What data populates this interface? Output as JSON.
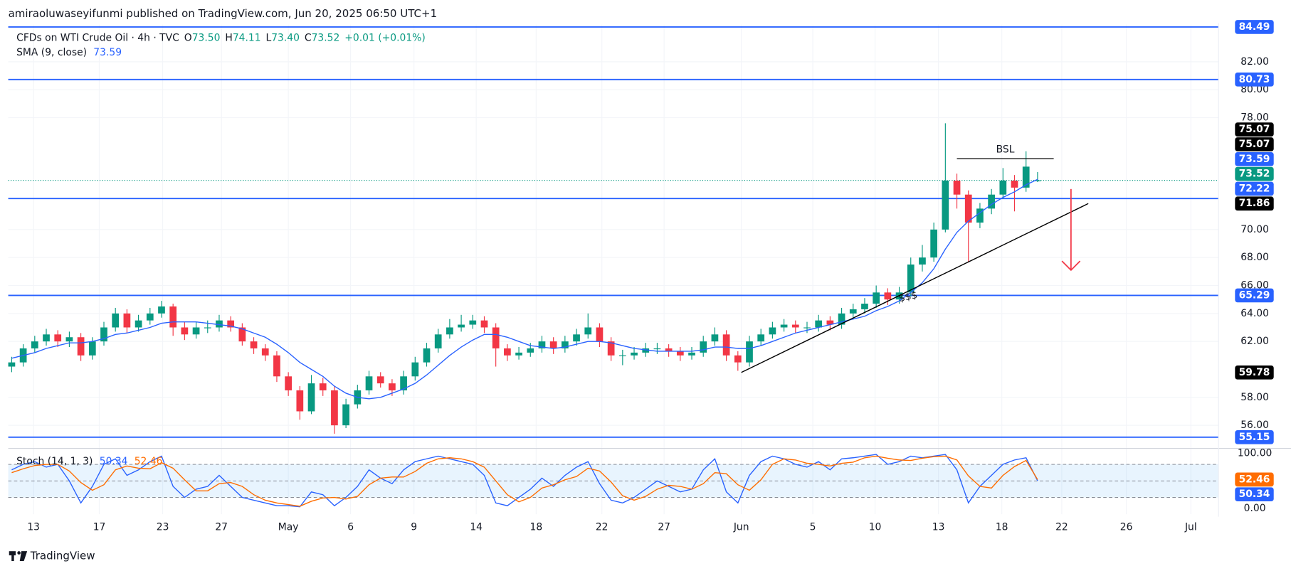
{
  "header": {
    "published": "amiraoluwaseyifunmi published on TradingView.com, Jun 20, 2025 06:50 UTC+1"
  },
  "legend": {
    "symbol": "CFDs on WTI Crude Oil · 4h · TVC",
    "o_label": "O",
    "open": "73.50",
    "h_label": "H",
    "high": "74.11",
    "l_label": "L",
    "low": "73.40",
    "c_label": "C",
    "close": "73.52",
    "change": "+0.01 (+0.01%)",
    "sma_label": "SMA (9, close)",
    "sma": "73.59",
    "stoch_label": "Stoch (14, 1, 3)",
    "stoch_k": "50.34",
    "stoch_d": "52.46"
  },
  "footer": {
    "brand": "TradingView"
  },
  "chart_data": {
    "type": "candlestick",
    "up_color": "#089981",
    "down_color": "#f23645",
    "grid": true,
    "xlim": [
      -0.3,
      104.7
    ],
    "ylim": [
      54.35,
      84.65
    ],
    "xticks": [
      {
        "value": 1.9,
        "label": "13"
      },
      {
        "value": 7.6,
        "label": "17"
      },
      {
        "value": 13.1,
        "label": "23"
      },
      {
        "value": 18.2,
        "label": "27"
      },
      {
        "value": 24,
        "label": "May"
      },
      {
        "value": 29.4,
        "label": "6"
      },
      {
        "value": 34.9,
        "label": "9"
      },
      {
        "value": 40.3,
        "label": "14"
      },
      {
        "value": 45.5,
        "label": "18"
      },
      {
        "value": 51.2,
        "label": "22"
      },
      {
        "value": 56.6,
        "label": "27"
      },
      {
        "value": 63.3,
        "label": "Jun"
      },
      {
        "value": 69.5,
        "label": "5"
      },
      {
        "value": 74.9,
        "label": "10"
      },
      {
        "value": 80.4,
        "label": "13"
      },
      {
        "value": 85.9,
        "label": "18"
      },
      {
        "value": 91.1,
        "label": "22"
      },
      {
        "value": 96.7,
        "label": "26"
      },
      {
        "value": 102.3,
        "label": "Jul"
      }
    ],
    "yticks": [
      {
        "value": 56,
        "label": "56.00"
      },
      {
        "value": 58,
        "label": "58.00"
      },
      {
        "value": 62,
        "label": "62.00"
      },
      {
        "value": 64,
        "label": "64.00"
      },
      {
        "value": 66,
        "label": "66.00"
      },
      {
        "value": 68,
        "label": "68.00"
      },
      {
        "value": 70,
        "label": "70.00"
      },
      {
        "value": 78,
        "label": "78.00"
      },
      {
        "value": 80,
        "label": "80.00"
      },
      {
        "value": 82,
        "label": "82.00"
      }
    ],
    "candles": [
      [
        60.2,
        60.9,
        59.8,
        60.5
      ],
      [
        60.5,
        61.8,
        60.2,
        61.5
      ],
      [
        61.5,
        62.4,
        61.2,
        62.0
      ],
      [
        62.0,
        62.9,
        61.7,
        62.5
      ],
      [
        62.5,
        62.8,
        61.6,
        62.0
      ],
      [
        62.0,
        62.7,
        61.6,
        62.3
      ],
      [
        62.3,
        62.6,
        60.6,
        61.0
      ],
      [
        61.0,
        62.3,
        60.7,
        62.0
      ],
      [
        62.0,
        63.4,
        61.7,
        63.0
      ],
      [
        63.0,
        64.4,
        62.7,
        64.0
      ],
      [
        64.0,
        64.3,
        62.6,
        63.0
      ],
      [
        63.0,
        63.9,
        62.7,
        63.5
      ],
      [
        63.5,
        64.4,
        63.2,
        64.0
      ],
      [
        64.0,
        64.9,
        63.7,
        64.5
      ],
      [
        64.5,
        64.7,
        62.4,
        63.0
      ],
      [
        63.0,
        63.4,
        62.1,
        62.5
      ],
      [
        62.5,
        63.4,
        62.2,
        63.0
      ],
      [
        63.0,
        63.5,
        62.6,
        63.0
      ],
      [
        63.0,
        63.9,
        62.7,
        63.5
      ],
      [
        63.5,
        63.8,
        62.7,
        63.0
      ],
      [
        63.0,
        63.3,
        61.7,
        62.0
      ],
      [
        62.0,
        62.3,
        61.1,
        61.5
      ],
      [
        61.5,
        61.8,
        60.6,
        61.0
      ],
      [
        61.0,
        61.3,
        59.1,
        59.5
      ],
      [
        59.5,
        59.8,
        58.1,
        58.5
      ],
      [
        58.5,
        58.8,
        56.4,
        57.0
      ],
      [
        57.0,
        59.6,
        56.8,
        59.0
      ],
      [
        59.0,
        59.4,
        58.1,
        58.5
      ],
      [
        58.5,
        58.8,
        55.4,
        56.0
      ],
      [
        56.0,
        57.9,
        55.8,
        57.5
      ],
      [
        57.5,
        58.9,
        57.2,
        58.5
      ],
      [
        58.5,
        59.9,
        58.2,
        59.5
      ],
      [
        59.5,
        59.8,
        58.7,
        59.0
      ],
      [
        59.0,
        59.3,
        58.1,
        58.5
      ],
      [
        58.5,
        59.9,
        58.2,
        59.5
      ],
      [
        59.5,
        60.9,
        59.2,
        60.5
      ],
      [
        60.5,
        61.9,
        60.2,
        61.5
      ],
      [
        61.5,
        62.9,
        61.2,
        62.5
      ],
      [
        62.5,
        63.6,
        62.2,
        63.0
      ],
      [
        63.0,
        63.9,
        62.7,
        63.2
      ],
      [
        63.2,
        63.9,
        62.9,
        63.5
      ],
      [
        63.5,
        63.8,
        62.6,
        63.0
      ],
      [
        63.0,
        63.3,
        60.2,
        61.5
      ],
      [
        61.5,
        61.8,
        60.6,
        61.0
      ],
      [
        61.0,
        61.6,
        60.7,
        61.2
      ],
      [
        61.2,
        61.9,
        60.9,
        61.5
      ],
      [
        61.5,
        62.4,
        61.2,
        62.0
      ],
      [
        62.0,
        62.3,
        61.1,
        61.5
      ],
      [
        61.5,
        62.4,
        61.2,
        62.0
      ],
      [
        62.0,
        62.9,
        61.7,
        62.5
      ],
      [
        62.5,
        64.0,
        62.2,
        63.0
      ],
      [
        63.0,
        63.3,
        61.6,
        62.0
      ],
      [
        62.0,
        62.3,
        60.6,
        61.0
      ],
      [
        61.0,
        61.4,
        60.3,
        61.0
      ],
      [
        61.0,
        61.6,
        60.7,
        61.2
      ],
      [
        61.2,
        61.9,
        60.9,
        61.5
      ],
      [
        61.5,
        61.9,
        61.1,
        61.5
      ],
      [
        61.5,
        61.8,
        60.9,
        61.3
      ],
      [
        61.3,
        61.6,
        60.6,
        61.0
      ],
      [
        61.0,
        61.6,
        60.7,
        61.2
      ],
      [
        61.2,
        62.4,
        60.9,
        62.0
      ],
      [
        62.0,
        63.0,
        61.7,
        62.5
      ],
      [
        62.5,
        62.8,
        60.6,
        61.0
      ],
      [
        61.0,
        61.3,
        59.9,
        60.5
      ],
      [
        60.5,
        62.4,
        60.2,
        62.0
      ],
      [
        62.0,
        62.9,
        61.7,
        62.5
      ],
      [
        62.5,
        63.4,
        62.2,
        63.0
      ],
      [
        63.0,
        63.6,
        62.7,
        63.2
      ],
      [
        63.2,
        63.5,
        62.6,
        63.0
      ],
      [
        63.0,
        63.4,
        62.6,
        63.0
      ],
      [
        63.0,
        63.9,
        62.7,
        63.5
      ],
      [
        63.5,
        63.8,
        62.8,
        63.2
      ],
      [
        63.2,
        64.4,
        62.9,
        64.0
      ],
      [
        64.0,
        64.7,
        63.7,
        64.3
      ],
      [
        64.3,
        65.1,
        64.0,
        64.7
      ],
      [
        64.7,
        66.0,
        64.4,
        65.5
      ],
      [
        65.5,
        65.8,
        64.6,
        65.0
      ],
      [
        65.0,
        65.9,
        64.7,
        65.5
      ],
      [
        65.5,
        68.0,
        65.2,
        67.5
      ],
      [
        67.5,
        68.9,
        67.0,
        68.0
      ],
      [
        68.0,
        70.5,
        67.7,
        70.0
      ],
      [
        70.0,
        77.6,
        69.8,
        73.5
      ],
      [
        73.5,
        74.0,
        71.5,
        72.5
      ],
      [
        72.5,
        72.8,
        67.7,
        70.5
      ],
      [
        70.5,
        71.9,
        70.1,
        71.5
      ],
      [
        71.5,
        72.9,
        71.1,
        72.5
      ],
      [
        72.5,
        74.4,
        72.2,
        73.5
      ],
      [
        73.5,
        73.9,
        71.3,
        73.0
      ],
      [
        73.0,
        75.6,
        72.7,
        74.5
      ],
      [
        73.5,
        74.11,
        73.4,
        73.52
      ]
    ],
    "sma": {
      "color": "#2962ff",
      "values": [
        60.8,
        61.0,
        61.2,
        61.5,
        61.7,
        61.9,
        61.9,
        62.0,
        62.2,
        62.5,
        62.6,
        62.8,
        63.0,
        63.3,
        63.4,
        63.4,
        63.4,
        63.3,
        63.2,
        63.1,
        62.9,
        62.6,
        62.3,
        61.8,
        61.2,
        60.5,
        60.0,
        59.5,
        58.8,
        58.3,
        58.0,
        57.9,
        58.0,
        58.3,
        58.6,
        59.0,
        59.6,
        60.3,
        61.0,
        61.6,
        62.1,
        62.5,
        62.5,
        62.3,
        62.0,
        61.7,
        61.6,
        61.5,
        61.6,
        61.8,
        62.0,
        62.0,
        61.9,
        61.7,
        61.5,
        61.4,
        61.3,
        61.3,
        61.3,
        61.3,
        61.4,
        61.6,
        61.6,
        61.5,
        61.5,
        61.7,
        62.0,
        62.3,
        62.6,
        62.8,
        63.0,
        63.2,
        63.4,
        63.6,
        63.8,
        64.2,
        64.5,
        64.9,
        65.5,
        66.2,
        67.2,
        68.6,
        69.8,
        70.6,
        71.2,
        71.8,
        72.3,
        72.7,
        73.2,
        73.59
      ]
    },
    "price_tags": [
      {
        "value": 84.49,
        "color": "#2962ff",
        "line": true
      },
      {
        "value": 80.73,
        "color": "#2962ff",
        "line": true
      },
      {
        "value": 75.07,
        "color": "#000000"
      },
      {
        "value": 75.07,
        "color": "#000000"
      },
      {
        "value": 73.59,
        "color": "#2962ff"
      },
      {
        "value": 73.52,
        "color": "#089981",
        "dotted": true
      },
      {
        "value": 72.22,
        "color": "#2962ff",
        "line": true
      },
      {
        "value": 71.86,
        "color": "#000000"
      },
      {
        "value": 65.29,
        "color": "#2962ff",
        "line": true
      },
      {
        "value": 59.78,
        "color": "#000000"
      },
      {
        "value": 55.15,
        "color": "#2962ff",
        "line": true
      }
    ],
    "trendline": {
      "x": [
        63.3,
        93.4
      ],
      "y": [
        59.78,
        71.86
      ],
      "color": "#000000"
    },
    "bsl": {
      "label": "BSL",
      "x": [
        82,
        90.4
      ],
      "y": 75.07,
      "color": "#000000",
      "label_color": "#2962ff"
    },
    "sss": {
      "label": "$$$",
      "color": "#2962ff"
    },
    "arrow": {
      "x": 91.9,
      "from": 72.9,
      "to": 67.1,
      "color": "#f23645"
    },
    "stoch": {
      "y2lim": [
        -10.4,
        104.5
      ],
      "y2ticks": [
        {
          "value": 0,
          "label": "0.00"
        },
        {
          "value": 100,
          "label": "100.00"
        }
      ],
      "bands": [
        80,
        50,
        20
      ],
      "series": [
        {
          "color": "#2962ff",
          "values": [
            70,
            80,
            85,
            75,
            80,
            50,
            10,
            40,
            80,
            90,
            60,
            70,
            85,
            95,
            40,
            20,
            35,
            40,
            60,
            40,
            20,
            15,
            10,
            5,
            5,
            3,
            30,
            25,
            5,
            20,
            40,
            70,
            55,
            45,
            70,
            85,
            90,
            95,
            90,
            85,
            80,
            60,
            10,
            5,
            20,
            35,
            55,
            40,
            60,
            75,
            85,
            45,
            15,
            10,
            20,
            35,
            50,
            40,
            30,
            35,
            70,
            90,
            30,
            10,
            60,
            85,
            95,
            90,
            80,
            75,
            85,
            70,
            90,
            92,
            95,
            98,
            80,
            85,
            95,
            92,
            95,
            98,
            70,
            10,
            40,
            60,
            80,
            88,
            92,
            50.34
          ]
        },
        {
          "color": "#ff6d00",
          "values": [
            65,
            72,
            78,
            80,
            80,
            68,
            47,
            33,
            43,
            70,
            77,
            73,
            72,
            83,
            73,
            52,
            32,
            32,
            45,
            47,
            40,
            25,
            15,
            10,
            7,
            4,
            13,
            19,
            20,
            17,
            22,
            43,
            55,
            57,
            57,
            67,
            82,
            90,
            92,
            90,
            85,
            75,
            50,
            25,
            12,
            20,
            37,
            43,
            52,
            58,
            73,
            68,
            48,
            23,
            15,
            22,
            35,
            42,
            40,
            35,
            45,
            65,
            63,
            43,
            33,
            52,
            80,
            90,
            88,
            82,
            80,
            77,
            82,
            84,
            92,
            95,
            91,
            88,
            87,
            91,
            94,
            95,
            88,
            59,
            40,
            37,
            60,
            76,
            87,
            52.46
          ]
        }
      ],
      "tags": [
        {
          "value": 52.46,
          "color": "#ff6d00"
        },
        {
          "value": 50.34,
          "color": "#2962ff"
        }
      ]
    }
  }
}
